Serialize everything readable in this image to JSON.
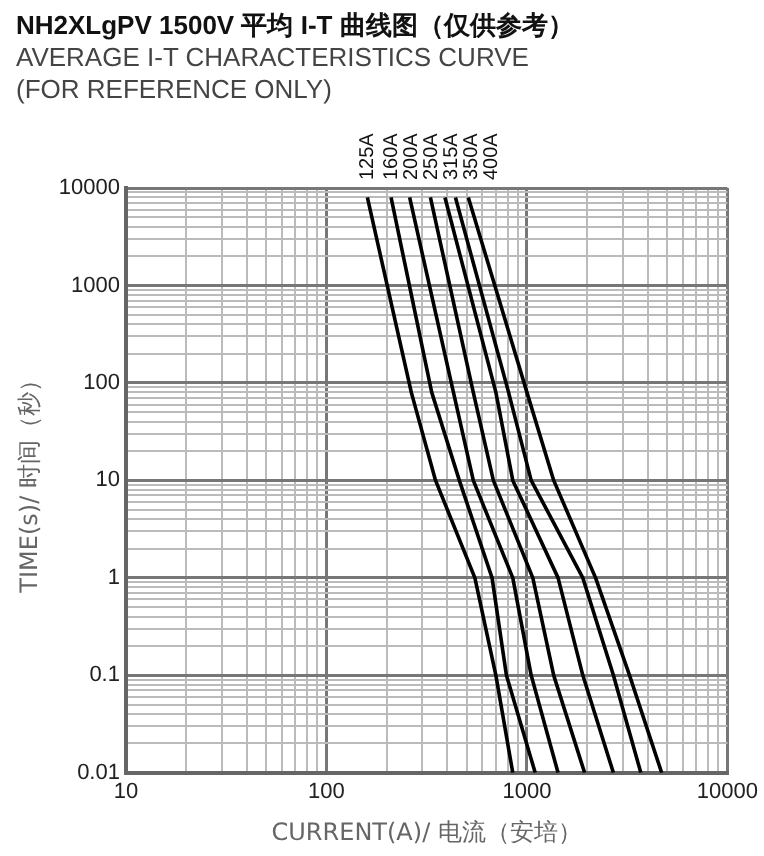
{
  "chart_data": {
    "type": "line",
    "title": "NH2XLgPV 1500V 平均 I-T 曲线图（仅供参考）",
    "subtitle": "AVERAGE I-T CHARACTERISTICS CURVE\n(FOR REFERENCE ONLY)",
    "xlabel": "CURRENT(A)/ 电流（安培）",
    "ylabel": "TIME(s)/ 时间（秒）",
    "log": "xy",
    "grid": true,
    "legend": false,
    "marker": "none",
    "line_style": "solid",
    "xlim": [
      10,
      10000
    ],
    "xticks": [
      10,
      100,
      1000,
      10000
    ],
    "ylim": [
      0.01,
      10000
    ],
    "yticks": [
      0.01,
      0.1,
      1,
      10,
      100,
      1000,
      10000
    ],
    "series": [
      {
        "name": "125A",
        "color": "#000000",
        "x": [
          160,
          265,
          350,
          550,
          700,
          850
        ],
        "values": [
          8000,
          80,
          10,
          1,
          0.1,
          0.01
        ]
      },
      {
        "name": "160A",
        "color": "#000000",
        "x": [
          210,
          335,
          460,
          670,
          790,
          1100
        ],
        "values": [
          8000,
          80,
          10,
          1,
          0.1,
          0.01
        ]
      },
      {
        "name": "200A",
        "color": "#000000",
        "x": [
          260,
          430,
          540,
          850,
          1050,
          1430
        ],
        "values": [
          8000,
          80,
          10,
          1,
          0.1,
          0.01
        ]
      },
      {
        "name": "250A",
        "color": "#000000",
        "x": [
          330,
          540,
          680,
          1070,
          1360,
          1940
        ],
        "values": [
          8000,
          80,
          10,
          1,
          0.1,
          0.01
        ]
      },
      {
        "name": "315A",
        "color": "#000000",
        "x": [
          390,
          700,
          850,
          1430,
          1900,
          2700
        ],
        "values": [
          8000,
          80,
          10,
          1,
          0.1,
          0.01
        ]
      },
      {
        "name": "350A",
        "color": "#000000",
        "x": [
          440,
          810,
          1050,
          1900,
          2700,
          3700
        ],
        "values": [
          8000,
          80,
          10,
          1,
          0.1,
          0.01
        ]
      },
      {
        "name": "400A",
        "color": "#000000",
        "x": [
          510,
          1000,
          1360,
          2200,
          3250,
          4700
        ],
        "values": [
          8000,
          80,
          10,
          1,
          0.1,
          0.01
        ]
      }
    ]
  }
}
